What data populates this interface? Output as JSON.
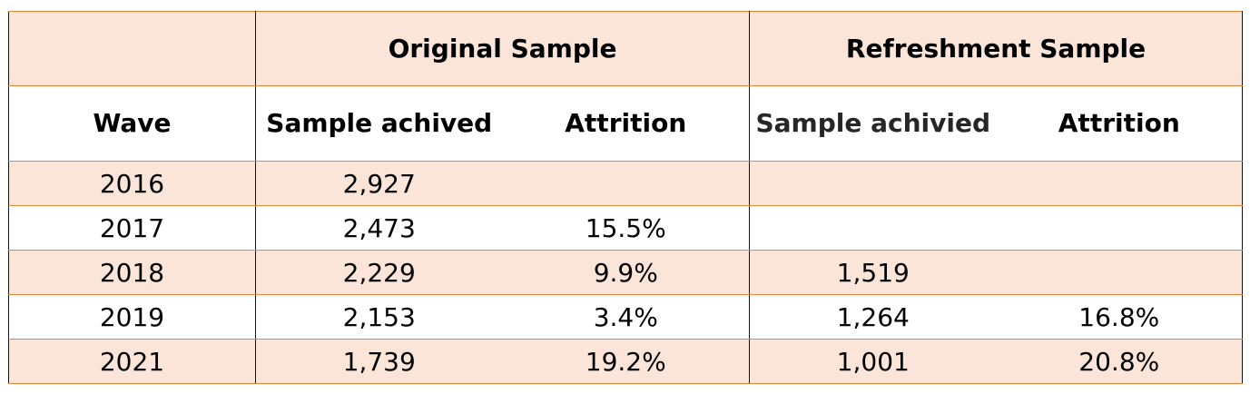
{
  "table": {
    "group_headers": {
      "wave_group": "",
      "original": "Original Sample",
      "refreshment": "Refreshment Sample"
    },
    "sub_headers": {
      "wave": "Wave",
      "original_sample": "Sample achived",
      "original_attrition": "Attrition",
      "refreshment_sample": "Sample achivied",
      "refreshment_attrition": "Attrition"
    },
    "rows": [
      {
        "wave": "2016",
        "original_sample": "2,927",
        "original_attrition": "",
        "refreshment_sample": "",
        "refreshment_attrition": ""
      },
      {
        "wave": "2017",
        "original_sample": "2,473",
        "original_attrition": "15.5%",
        "refreshment_sample": "",
        "refreshment_attrition": ""
      },
      {
        "wave": "2018",
        "original_sample": "2,229",
        "original_attrition": "9.9%",
        "refreshment_sample": "1,519",
        "refreshment_attrition": ""
      },
      {
        "wave": "2019",
        "original_sample": "2,153",
        "original_attrition": "3.4%",
        "refreshment_sample": "1,264",
        "refreshment_attrition": "16.8%"
      },
      {
        "wave": "2021",
        "original_sample": "1,739",
        "original_attrition": "19.2%",
        "refreshment_sample": "1,001",
        "refreshment_attrition": "20.8%"
      }
    ]
  },
  "colors": {
    "band_fill": "#fbe4d8",
    "row_rule": "#e8873f",
    "column_rule": "#111111"
  }
}
